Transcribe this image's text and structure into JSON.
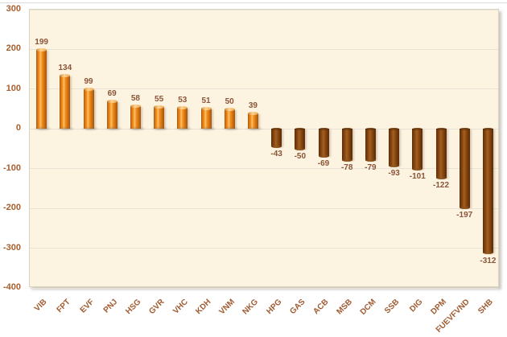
{
  "chart_data": {
    "type": "bar",
    "categories": [
      "VIB",
      "FPT",
      "EVF",
      "PNJ",
      "HSG",
      "GVR",
      "VHC",
      "KDH",
      "VNM",
      "NKG",
      "HPG",
      "GAS",
      "ACB",
      "MSB",
      "DCM",
      "SSB",
      "DIG",
      "DPM",
      "FUEVFVND",
      "SHB"
    ],
    "values": [
      199,
      134,
      99,
      69,
      58,
      55,
      53,
      51,
      50,
      39,
      -43,
      -50,
      -69,
      -78,
      -79,
      -93,
      -101,
      -122,
      -197,
      -312
    ],
    "title": "",
    "xlabel": "",
    "ylabel": "",
    "ylim": [
      -400,
      300
    ],
    "ytick_step": 100,
    "yticks": [
      300,
      200,
      100,
      0,
      -100,
      -200,
      -300,
      -400
    ],
    "grid": true,
    "legend": false,
    "data_labels": true,
    "colors": {
      "plot_background": "#fdf3e1",
      "gridline": "#e8e3d6",
      "positive_bar": "#ef8c1c",
      "positive_bar_highlight": "#ffbe63",
      "positive_bar_edge": "#a1550e",
      "negative_bar": "#8d4a15",
      "negative_bar_highlight": "#a2601f",
      "negative_bar_edge": "#5e2f08",
      "axis_label": "#a65e2c",
      "data_label": "#8a5438",
      "category_label": "#a05a30"
    }
  }
}
